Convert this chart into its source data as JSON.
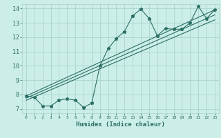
{
  "title": "",
  "xlabel": "Humidex (Indice chaleur)",
  "xlim": [
    -0.5,
    23.5
  ],
  "ylim": [
    6.7,
    14.3
  ],
  "yticks": [
    7,
    8,
    9,
    10,
    11,
    12,
    13,
    14
  ],
  "xticks": [
    0,
    1,
    2,
    3,
    4,
    5,
    6,
    7,
    8,
    9,
    10,
    11,
    12,
    13,
    14,
    15,
    16,
    17,
    18,
    19,
    20,
    21,
    22,
    23
  ],
  "bg_color": "#cceee8",
  "line_color": "#2a6e65",
  "grid_color": "#aad4cc",
  "main_line_x": [
    0,
    1,
    2,
    3,
    4,
    5,
    6,
    7,
    8,
    9,
    10,
    11,
    12,
    13,
    14,
    15,
    16,
    17,
    18,
    19,
    20,
    21,
    22,
    23
  ],
  "main_line_y": [
    7.9,
    7.8,
    7.2,
    7.2,
    7.6,
    7.7,
    7.6,
    7.1,
    7.4,
    10.0,
    11.2,
    11.9,
    12.4,
    13.5,
    13.95,
    13.3,
    12.1,
    12.6,
    12.55,
    12.55,
    13.0,
    14.15,
    13.3,
    13.9
  ],
  "reg_line1_x": [
    0,
    23
  ],
  "reg_line1_y": [
    7.9,
    13.9
  ],
  "reg_line2_x": [
    0,
    23
  ],
  "reg_line2_y": [
    7.75,
    13.55
  ],
  "reg_line3_x": [
    0,
    23
  ],
  "reg_line3_y": [
    7.6,
    13.2
  ]
}
